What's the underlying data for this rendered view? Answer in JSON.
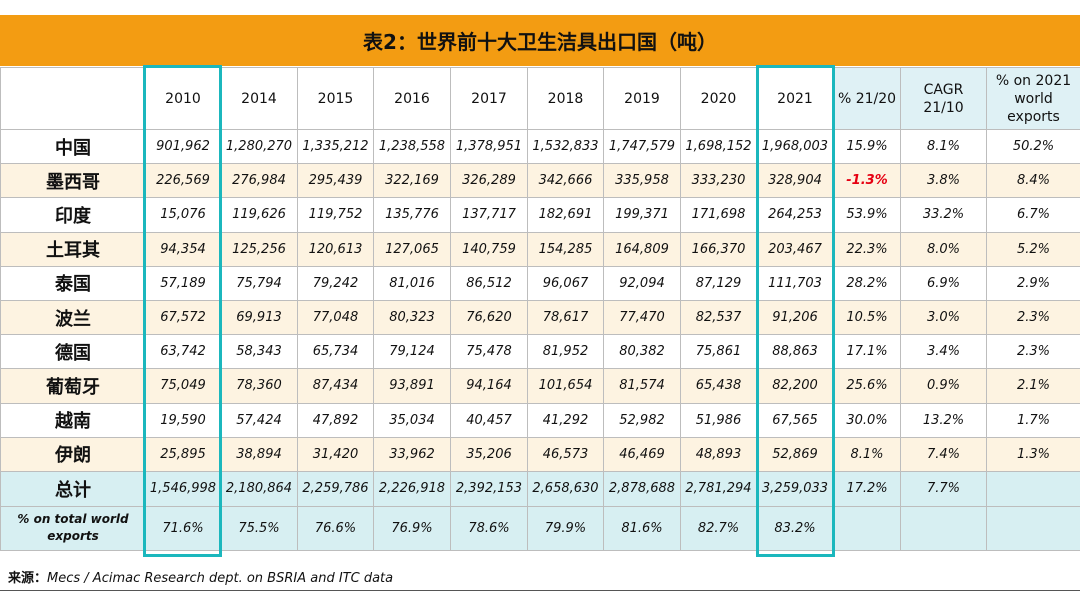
{
  "title": "表2：世界前十大卫生洁具出口国（吨）",
  "headers": {
    "years": [
      "2010",
      "2014",
      "2015",
      "2016",
      "2017",
      "2018",
      "2019",
      "2020",
      "2021"
    ],
    "pct_2120": "% 21/20",
    "cagr": [
      "CAGR",
      "21/10"
    ],
    "share_2021": [
      "% on 2021",
      "world",
      "exports"
    ]
  },
  "rows": [
    {
      "country": "中国",
      "values": [
        "901,962",
        "1,280,270",
        "1,335,212",
        "1,238,558",
        "1,378,951",
        "1,532,833",
        "1,747,579",
        "1,698,152",
        "1,968,003"
      ],
      "pct": "15.9%",
      "cagr": "8.1%",
      "share": "50.2%"
    },
    {
      "country": "墨西哥",
      "values": [
        "226,569",
        "276,984",
        "295,439",
        "322,169",
        "326,289",
        "342,666",
        "335,958",
        "333,230",
        "328,904"
      ],
      "pct": "-1.3%",
      "cagr": "3.8%",
      "share": "8.4%"
    },
    {
      "country": "印度",
      "values": [
        "15,076",
        "119,626",
        "119,752",
        "135,776",
        "137,717",
        "182,691",
        "199,371",
        "171,698",
        "264,253"
      ],
      "pct": "53.9%",
      "cagr": "33.2%",
      "share": "6.7%"
    },
    {
      "country": "土耳其",
      "values": [
        "94,354",
        "125,256",
        "120,613",
        "127,065",
        "140,759",
        "154,285",
        "164,809",
        "166,370",
        "203,467"
      ],
      "pct": "22.3%",
      "cagr": "8.0%",
      "share": "5.2%"
    },
    {
      "country": "泰国",
      "values": [
        "57,189",
        "75,794",
        "79,242",
        "81,016",
        "86,512",
        "96,067",
        "92,094",
        "87,129",
        "111,703"
      ],
      "pct": "28.2%",
      "cagr": "6.9%",
      "share": "2.9%"
    },
    {
      "country": "波兰",
      "values": [
        "67,572",
        "69,913",
        "77,048",
        "80,323",
        "76,620",
        "78,617",
        "77,470",
        "82,537",
        "91,206"
      ],
      "pct": "10.5%",
      "cagr": "3.0%",
      "share": "2.3%"
    },
    {
      "country": "德国",
      "values": [
        "63,742",
        "58,343",
        "65,734",
        "79,124",
        "75,478",
        "81,952",
        "80,382",
        "75,861",
        "88,863"
      ],
      "pct": "17.1%",
      "cagr": "3.4%",
      "share": "2.3%"
    },
    {
      "country": "葡萄牙",
      "values": [
        "75,049",
        "78,360",
        "87,434",
        "93,891",
        "94,164",
        "101,654",
        "81,574",
        "65,438",
        "82,200"
      ],
      "pct": "25.6%",
      "cagr": "0.9%",
      "share": "2.1%"
    },
    {
      "country": "越南",
      "values": [
        "19,590",
        "57,424",
        "47,892",
        "35,034",
        "40,457",
        "41,292",
        "52,982",
        "51,986",
        "67,565"
      ],
      "pct": "30.0%",
      "cagr": "13.2%",
      "share": "1.7%"
    },
    {
      "country": "伊朗",
      "values": [
        "25,895",
        "38,894",
        "31,420",
        "33,962",
        "35,206",
        "46,573",
        "46,469",
        "48,893",
        "52,869"
      ],
      "pct": "8.1%",
      "cagr": "7.4%",
      "share": "1.3%"
    }
  ],
  "total": {
    "label": "总计",
    "values": [
      "1,546,998",
      "2,180,864",
      "2,259,786",
      "2,226,918",
      "2,392,153",
      "2,658,630",
      "2,878,688",
      "2,781,294",
      "3,259,033"
    ],
    "pct": "17.2%",
    "cagr": "7.7%"
  },
  "share_row": {
    "label": [
      "% on total world",
      "exports"
    ],
    "values": [
      "71.6%",
      "75.5%",
      "76.6%",
      "76.9%",
      "78.6%",
      "79.9%",
      "81.6%",
      "82.7%",
      "83.2%"
    ]
  },
  "source": {
    "label": "来源：",
    "text": "Mecs / Acimac Research dept. on BSRIA and ITC data"
  },
  "colors": {
    "title_bg": "#f39c12",
    "highlight": "#1bb7bd",
    "total_bg": "#d7eff2",
    "alt_row_bg": "#fdf3e1",
    "negative": "#e60012"
  },
  "chart_data": {
    "type": "table",
    "title": "表2：世界前十大卫生洁具出口国（吨）",
    "columns": [
      "2010",
      "2014",
      "2015",
      "2016",
      "2017",
      "2018",
      "2019",
      "2020",
      "2021",
      "% 21/20",
      "CAGR 21/10",
      "% on 2021 world exports"
    ],
    "highlighted_columns": [
      "2010",
      "2021"
    ],
    "rows": [
      {
        "name": "中国",
        "values": [
          901962,
          1280270,
          1335212,
          1238558,
          1378951,
          1532833,
          1747579,
          1698152,
          1968003
        ],
        "pct_21_20": 15.9,
        "cagr_21_10": 8.1,
        "share_2021": 50.2
      },
      {
        "name": "墨西哥",
        "values": [
          226569,
          276984,
          295439,
          322169,
          326289,
          342666,
          335958,
          333230,
          328904
        ],
        "pct_21_20": -1.3,
        "cagr_21_10": 3.8,
        "share_2021": 8.4
      },
      {
        "name": "印度",
        "values": [
          15076,
          119626,
          119752,
          135776,
          137717,
          182691,
          199371,
          171698,
          264253
        ],
        "pct_21_20": 53.9,
        "cagr_21_10": 33.2,
        "share_2021": 6.7
      },
      {
        "name": "土耳其",
        "values": [
          94354,
          125256,
          120613,
          127065,
          140759,
          154285,
          164809,
          166370,
          203467
        ],
        "pct_21_20": 22.3,
        "cagr_21_10": 8.0,
        "share_2021": 5.2
      },
      {
        "name": "泰国",
        "values": [
          57189,
          75794,
          79242,
          81016,
          86512,
          96067,
          92094,
          87129,
          111703
        ],
        "pct_21_20": 28.2,
        "cagr_21_10": 6.9,
        "share_2021": 2.9
      },
      {
        "name": "波兰",
        "values": [
          67572,
          69913,
          77048,
          80323,
          76620,
          78617,
          77470,
          82537,
          91206
        ],
        "pct_21_20": 10.5,
        "cagr_21_10": 3.0,
        "share_2021": 2.3
      },
      {
        "name": "德国",
        "values": [
          63742,
          58343,
          65734,
          79124,
          75478,
          81952,
          80382,
          75861,
          88863
        ],
        "pct_21_20": 17.1,
        "cagr_21_10": 3.4,
        "share_2021": 2.3
      },
      {
        "name": "葡萄牙",
        "values": [
          75049,
          78360,
          87434,
          93891,
          94164,
          101654,
          81574,
          65438,
          82200
        ],
        "pct_21_20": 25.6,
        "cagr_21_10": 0.9,
        "share_2021": 2.1
      },
      {
        "name": "越南",
        "values": [
          19590,
          57424,
          47892,
          35034,
          40457,
          41292,
          52982,
          51986,
          67565
        ],
        "pct_21_20": 30.0,
        "cagr_21_10": 13.2,
        "share_2021": 1.7
      },
      {
        "name": "伊朗",
        "values": [
          25895,
          38894,
          31420,
          33962,
          35206,
          46573,
          46469,
          48893,
          52869
        ],
        "pct_21_20": 8.1,
        "cagr_21_10": 7.4,
        "share_2021": 1.3
      }
    ],
    "total": {
      "name": "总计",
      "values": [
        1546998,
        2180864,
        2259786,
        2226918,
        2392153,
        2658630,
        2878688,
        2781294,
        3259033
      ],
      "pct_21_20": 17.2,
      "cagr_21_10": 7.7
    },
    "share_of_world": {
      "name": "% on total world exports",
      "values": [
        71.6,
        75.5,
        76.6,
        76.9,
        78.6,
        79.9,
        81.6,
        82.7,
        83.2
      ]
    }
  }
}
